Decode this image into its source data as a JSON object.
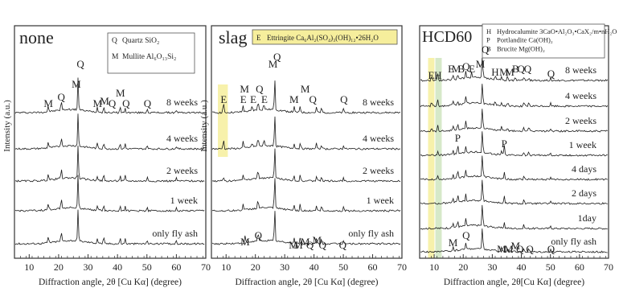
{
  "chart_data": [
    {
      "type": "line",
      "title": "none",
      "xlabel": "Diffraction angle, 2θ [Cu Kα] (degree)",
      "ylabel": "Intensity (a.u.)",
      "xlim": [
        5,
        70
      ],
      "x_ticks": [
        10,
        20,
        30,
        40,
        50,
        60,
        70
      ],
      "legend": [
        {
          "symbol": "Q",
          "text": "Quartz SiO₂"
        },
        {
          "symbol": "M",
          "text": "Mullite Al₆O₁₃Si₂"
        }
      ],
      "legend_position": "top-right",
      "series": [
        {
          "name": "8 weeks",
          "peaks": [
            [
              16.5,
              0.2
            ],
            [
              20.9,
              0.3
            ],
            [
              26.6,
              1.0
            ],
            [
              33.2,
              0.16
            ],
            [
              35.3,
              0.2
            ],
            [
              40.9,
              0.18
            ],
            [
              42.6,
              0.16
            ],
            [
              50.1,
              0.12
            ],
            [
              60.0,
              0.08
            ]
          ]
        },
        {
          "name": "4 weeks",
          "peaks": [
            [
              16.5,
              0.2
            ],
            [
              20.9,
              0.3
            ],
            [
              26.6,
              1.0
            ],
            [
              33.2,
              0.16
            ],
            [
              35.3,
              0.2
            ],
            [
              40.9,
              0.18
            ],
            [
              42.6,
              0.16
            ],
            [
              50.1,
              0.12
            ],
            [
              60.0,
              0.08
            ]
          ]
        },
        {
          "name": "2 weeks",
          "peaks": [
            [
              16.5,
              0.2
            ],
            [
              20.9,
              0.3
            ],
            [
              26.6,
              1.0
            ],
            [
              33.2,
              0.16
            ],
            [
              35.3,
              0.2
            ],
            [
              40.9,
              0.18
            ],
            [
              42.6,
              0.16
            ],
            [
              50.1,
              0.12
            ],
            [
              60.0,
              0.08
            ]
          ]
        },
        {
          "name": "1 week",
          "peaks": [
            [
              16.5,
              0.2
            ],
            [
              20.9,
              0.3
            ],
            [
              26.6,
              1.0
            ],
            [
              33.2,
              0.16
            ],
            [
              35.3,
              0.2
            ],
            [
              40.9,
              0.18
            ],
            [
              42.6,
              0.16
            ],
            [
              50.1,
              0.12
            ],
            [
              60.0,
              0.08
            ]
          ]
        },
        {
          "name": "only fly ash",
          "peaks": [
            [
              16.5,
              0.2
            ],
            [
              20.9,
              0.3
            ],
            [
              26.6,
              1.0
            ],
            [
              33.2,
              0.16
            ],
            [
              35.3,
              0.2
            ],
            [
              40.9,
              0.18
            ],
            [
              42.6,
              0.16
            ],
            [
              50.1,
              0.12
            ],
            [
              60.0,
              0.08
            ]
          ]
        }
      ],
      "annotations": [
        {
          "text": "M",
          "x": 16.5
        },
        {
          "text": "Q",
          "x": 20.9
        },
        {
          "text": "M",
          "x": 26.0
        },
        {
          "text": "Q",
          "x": 27.4
        },
        {
          "text": "M",
          "x": 33.2
        },
        {
          "text": "M",
          "x": 35.6
        },
        {
          "text": "Q",
          "x": 38.2
        },
        {
          "text": "M",
          "x": 41.0
        },
        {
          "text": "Q",
          "x": 42.9
        },
        {
          "text": "Q",
          "x": 50.2
        }
      ],
      "highlights": []
    },
    {
      "type": "line",
      "title": "slag",
      "xlabel": "Diffraction angle, 2θ [Cu Kα] (degree)",
      "ylabel": "Intensity (a.u.)",
      "xlim": [
        5,
        70
      ],
      "x_ticks": [
        10,
        20,
        30,
        40,
        50,
        60,
        70
      ],
      "legend": [
        {
          "symbol": "E",
          "text": "Ettringite Ca₆Al₂(SO₄)₃(OH)₁₂•26H₂O"
        }
      ],
      "legend_position": "top-right",
      "series": [
        {
          "name": "8 weeks",
          "peaks": [
            [
              9.1,
              0.32
            ],
            [
              15.8,
              0.2
            ],
            [
              18.9,
              0.15
            ],
            [
              20.9,
              0.3
            ],
            [
              22.9,
              0.2
            ],
            [
              26.6,
              1.0
            ],
            [
              33.2,
              0.16
            ],
            [
              35.3,
              0.2
            ],
            [
              40.9,
              0.18
            ],
            [
              42.6,
              0.16
            ],
            [
              50.1,
              0.12
            ]
          ]
        },
        {
          "name": "4 weeks",
          "peaks": [
            [
              9.1,
              0.32
            ],
            [
              15.8,
              0.2
            ],
            [
              18.9,
              0.15
            ],
            [
              20.9,
              0.3
            ],
            [
              22.9,
              0.2
            ],
            [
              26.6,
              1.0
            ],
            [
              33.2,
              0.16
            ],
            [
              35.3,
              0.2
            ],
            [
              40.9,
              0.18
            ],
            [
              42.6,
              0.16
            ],
            [
              50.1,
              0.12
            ]
          ]
        },
        {
          "name": "2 weeks",
          "peaks": [
            [
              9.1,
              0.12
            ],
            [
              15.8,
              0.18
            ],
            [
              20.9,
              0.3
            ],
            [
              26.6,
              1.0
            ],
            [
              33.2,
              0.16
            ],
            [
              35.3,
              0.2
            ],
            [
              40.9,
              0.18
            ],
            [
              42.6,
              0.16
            ],
            [
              50.1,
              0.12
            ]
          ]
        },
        {
          "name": "1 week",
          "peaks": [
            [
              15.8,
              0.18
            ],
            [
              20.9,
              0.3
            ],
            [
              26.6,
              1.0
            ],
            [
              33.2,
              0.16
            ],
            [
              35.3,
              0.2
            ],
            [
              40.9,
              0.18
            ],
            [
              42.6,
              0.16
            ],
            [
              50.1,
              0.12
            ]
          ]
        },
        {
          "name": "only fly ash",
          "peaks": [
            [
              16.5,
              0.2
            ],
            [
              20.9,
              0.3
            ],
            [
              26.6,
              1.0
            ],
            [
              33.2,
              0.16
            ],
            [
              35.3,
              0.2
            ],
            [
              40.9,
              0.18
            ],
            [
              42.6,
              0.16
            ],
            [
              50.1,
              0.12
            ]
          ]
        }
      ],
      "annotations": [
        {
          "text": "E",
          "x": 9.2
        },
        {
          "text": "M",
          "x": 16.3
        },
        {
          "text": "E",
          "x": 15.9
        },
        {
          "text": "E",
          "x": 19.3
        },
        {
          "text": "Q",
          "x": 21.4
        },
        {
          "text": "E",
          "x": 23.1
        },
        {
          "text": "M",
          "x": 26.0
        },
        {
          "text": "Q",
          "x": 27.4
        },
        {
          "text": "M",
          "x": 33.2
        },
        {
          "text": "M",
          "x": 37.0
        },
        {
          "text": "Q",
          "x": 39.6
        },
        {
          "text": "Q",
          "x": 50.2
        },
        {
          "text": "M",
          "x": 16.5
        },
        {
          "text": "Q",
          "x": 21.0
        },
        {
          "text": "M",
          "x": 33.0
        },
        {
          "text": "M",
          "x": 34.6
        },
        {
          "text": "M",
          "x": 37.0
        },
        {
          "text": "Q",
          "x": 38.6
        },
        {
          "text": "M",
          "x": 41.0
        },
        {
          "text": "Q",
          "x": 42.9
        },
        {
          "text": "Q",
          "x": 49.8
        }
      ],
      "highlights": [
        {
          "from": 7.2,
          "to": 10.6,
          "color": "#f6ee9c"
        }
      ]
    },
    {
      "type": "line",
      "title": "HCD60",
      "xlabel": "Diffraction angle, 2θ[Cu Kα] (degree)",
      "ylabel": "",
      "xlim": [
        5,
        70
      ],
      "x_ticks": [
        10,
        20,
        30,
        40,
        50,
        60,
        70
      ],
      "legend": [
        {
          "symbol": "H",
          "text": "Hydrocalumite 3CaO•Al₂O₃•CaX₂/m•nH₂O"
        },
        {
          "symbol": "P",
          "text": "Portlandite Ca(OH)₂"
        },
        {
          "symbol": "B",
          "text": "Brucite Mg(OH)₂"
        }
      ],
      "legend_position": "top-right",
      "series": [
        {
          "name": "8 weeks",
          "peaks": [
            [
              9.1,
              0.25
            ],
            [
              11.2,
              0.35
            ],
            [
              16.5,
              0.2
            ],
            [
              18.1,
              0.2
            ],
            [
              20.9,
              0.3
            ],
            [
              22.9,
              0.22
            ],
            [
              26.6,
              1.0
            ],
            [
              31.0,
              0.18
            ],
            [
              33.2,
              0.16
            ],
            [
              35.3,
              0.2
            ],
            [
              38.0,
              0.16
            ],
            [
              40.9,
              0.18
            ],
            [
              42.6,
              0.16
            ],
            [
              50.1,
              0.12
            ]
          ]
        },
        {
          "name": "4 weeks",
          "peaks": [
            [
              9.1,
              0.22
            ],
            [
              11.2,
              0.3
            ],
            [
              16.5,
              0.2
            ],
            [
              18.1,
              0.2
            ],
            [
              20.9,
              0.3
            ],
            [
              26.6,
              1.0
            ],
            [
              31.0,
              0.16
            ],
            [
              33.2,
              0.16
            ],
            [
              35.3,
              0.2
            ],
            [
              40.9,
              0.18
            ],
            [
              42.6,
              0.16
            ],
            [
              50.1,
              0.12
            ]
          ]
        },
        {
          "name": "2 weeks",
          "peaks": [
            [
              9.1,
              0.2
            ],
            [
              11.2,
              0.25
            ],
            [
              16.5,
              0.2
            ],
            [
              18.1,
              0.25
            ],
            [
              20.9,
              0.3
            ],
            [
              26.6,
              1.0
            ],
            [
              33.2,
              0.16
            ],
            [
              35.3,
              0.2
            ],
            [
              40.9,
              0.18
            ],
            [
              42.6,
              0.16
            ],
            [
              50.1,
              0.12
            ]
          ]
        },
        {
          "name": "1 week",
          "peaks": [
            [
              11.2,
              0.2
            ],
            [
              16.5,
              0.2
            ],
            [
              18.1,
              0.45
            ],
            [
              20.9,
              0.3
            ],
            [
              26.6,
              1.0
            ],
            [
              33.2,
              0.16
            ],
            [
              34.1,
              0.45
            ],
            [
              40.9,
              0.18
            ],
            [
              42.6,
              0.16
            ],
            [
              50.1,
              0.12
            ]
          ]
        },
        {
          "name": "4 days",
          "peaks": [
            [
              11.2,
              0.15
            ],
            [
              16.5,
              0.2
            ],
            [
              18.1,
              0.4
            ],
            [
              20.9,
              0.3
            ],
            [
              26.6,
              1.0
            ],
            [
              34.1,
              0.35
            ],
            [
              40.9,
              0.18
            ],
            [
              50.1,
              0.12
            ]
          ]
        },
        {
          "name": "2 days",
          "peaks": [
            [
              16.5,
              0.2
            ],
            [
              18.1,
              0.35
            ],
            [
              20.9,
              0.3
            ],
            [
              26.6,
              1.0
            ],
            [
              34.1,
              0.3
            ],
            [
              40.9,
              0.18
            ],
            [
              50.1,
              0.12
            ]
          ]
        },
        {
          "name": "1day",
          "peaks": [
            [
              16.5,
              0.2
            ],
            [
              18.1,
              0.3
            ],
            [
              20.9,
              0.3
            ],
            [
              26.6,
              1.0
            ],
            [
              34.1,
              0.25
            ],
            [
              40.9,
              0.18
            ],
            [
              50.1,
              0.12
            ]
          ]
        },
        {
          "name": "only fly ash",
          "peaks": [
            [
              16.5,
              0.2
            ],
            [
              20.9,
              0.3
            ],
            [
              26.6,
              1.0
            ],
            [
              33.2,
              0.16
            ],
            [
              35.3,
              0.2
            ],
            [
              40.9,
              0.18
            ],
            [
              42.6,
              0.16
            ],
            [
              50.1,
              0.12
            ]
          ]
        }
      ],
      "annotations": [
        {
          "text": "E",
          "x": 9.0
        },
        {
          "text": "H",
          "x": 11.3
        },
        {
          "text": "E",
          "x": 15.8
        },
        {
          "text": "M",
          "x": 17.6
        },
        {
          "text": "B",
          "x": 19.3
        },
        {
          "text": "Q",
          "x": 21.0
        },
        {
          "text": "E",
          "x": 23.0
        },
        {
          "text": "M",
          "x": 25.9
        },
        {
          "text": "Q",
          "x": 27.6
        },
        {
          "text": "H",
          "x": 31.0
        },
        {
          "text": "M",
          "x": 34.0
        },
        {
          "text": "M",
          "x": 36.0
        },
        {
          "text": "B",
          "x": 38.0
        },
        {
          "text": "Q",
          "x": 39.9
        },
        {
          "text": "Q",
          "x": 42.2
        },
        {
          "text": "Q",
          "x": 50.2
        },
        {
          "text": "P",
          "x": 18.1
        },
        {
          "text": "P",
          "x": 34.1
        },
        {
          "text": "M",
          "x": 16.5
        },
        {
          "text": "Q",
          "x": 21.0
        },
        {
          "text": "M",
          "x": 33.2
        },
        {
          "text": "M",
          "x": 35.6
        },
        {
          "text": "M",
          "x": 38.0
        },
        {
          "text": "Q",
          "x": 39.5
        },
        {
          "text": "Q",
          "x": 42.9
        },
        {
          "text": "Q",
          "x": 50.2
        }
      ],
      "highlights": [
        {
          "from": 7.9,
          "to": 10.1,
          "color": "#f6ee9c"
        },
        {
          "from": 10.4,
          "to": 12.6,
          "color": "#cfe5bf"
        }
      ]
    }
  ]
}
